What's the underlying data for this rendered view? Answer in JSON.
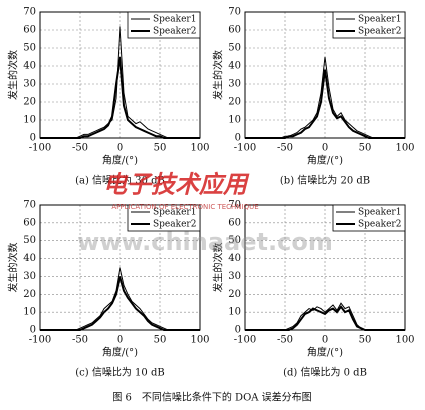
{
  "caption": "图 6　不同信噪比条件下的 DOA 误差分布图",
  "watermark": {
    "logo": "电子技术应用",
    "subtitle": "APPLICATION OF ELECTRONIC TECHNIQUE",
    "url": "www.chinaaet.com"
  },
  "chart_data": [
    {
      "type": "line",
      "title": "(a) 信噪比为 30 dB",
      "x_label": "角度/(°)",
      "y_label": "发生的次数",
      "x": [
        -100,
        -95,
        -90,
        -85,
        -80,
        -75,
        -70,
        -65,
        -60,
        -55,
        -50,
        -45,
        -40,
        -35,
        -30,
        -25,
        -20,
        -15,
        -10,
        -5,
        0,
        5,
        10,
        15,
        20,
        25,
        30,
        35,
        40,
        45,
        50,
        55,
        60,
        65,
        70,
        75,
        80,
        85,
        90,
        95,
        100
      ],
      "series": [
        {
          "name": "Speaker1",
          "color": "#000000",
          "width": 1,
          "values": [
            0,
            0,
            0,
            0,
            0,
            0,
            0,
            0,
            0,
            0,
            1,
            2,
            2,
            3,
            4,
            5,
            6,
            8,
            10,
            22,
            62,
            25,
            12,
            10,
            8,
            9,
            7,
            5,
            4,
            3,
            2,
            1,
            0,
            0,
            0,
            0,
            0,
            0,
            0,
            0,
            0
          ]
        },
        {
          "name": "Speaker2",
          "color": "#000000",
          "width": 2,
          "values": [
            0,
            0,
            0,
            0,
            0,
            0,
            0,
            0,
            0,
            0,
            0,
            1,
            1,
            2,
            3,
            4,
            5,
            7,
            12,
            30,
            45,
            18,
            10,
            8,
            6,
            5,
            4,
            3,
            2,
            1,
            1,
            0,
            0,
            0,
            0,
            0,
            0,
            0,
            0,
            0,
            0
          ]
        }
      ],
      "xlim": [
        -100,
        100
      ],
      "xticks": [
        -100,
        -50,
        0,
        50,
        100
      ],
      "ylim": [
        0,
        70
      ],
      "yticks": [
        0,
        10,
        20,
        30,
        40,
        50,
        60,
        70
      ],
      "grid": true,
      "legend": "upper right"
    },
    {
      "type": "line",
      "title": "(b) 信噪比为 20 dB",
      "x_label": "角度/(°)",
      "y_label": "发生的次数",
      "x": [
        -100,
        -95,
        -90,
        -85,
        -80,
        -75,
        -70,
        -65,
        -60,
        -55,
        -50,
        -45,
        -40,
        -35,
        -30,
        -25,
        -20,
        -15,
        -10,
        -5,
        0,
        5,
        10,
        15,
        20,
        25,
        30,
        35,
        40,
        45,
        50,
        55,
        60,
        65,
        70,
        75,
        80,
        85,
        90,
        95,
        100
      ],
      "series": [
        {
          "name": "Speaker1",
          "color": "#000000",
          "width": 1,
          "values": [
            0,
            0,
            0,
            0,
            0,
            0,
            0,
            0,
            0,
            0,
            1,
            1,
            2,
            3,
            5,
            6,
            8,
            10,
            14,
            25,
            45,
            28,
            16,
            12,
            14,
            10,
            8,
            6,
            4,
            3,
            2,
            1,
            0,
            0,
            0,
            0,
            0,
            0,
            0,
            0,
            0
          ]
        },
        {
          "name": "Speaker2",
          "color": "#000000",
          "width": 2,
          "values": [
            0,
            0,
            0,
            0,
            0,
            0,
            0,
            0,
            0,
            0,
            0,
            1,
            1,
            2,
            3,
            5,
            6,
            9,
            12,
            20,
            38,
            22,
            14,
            11,
            12,
            9,
            6,
            4,
            3,
            2,
            1,
            0,
            0,
            0,
            0,
            0,
            0,
            0,
            0,
            0,
            0
          ]
        }
      ],
      "xlim": [
        -100,
        100
      ],
      "xticks": [
        -100,
        -50,
        0,
        50,
        100
      ],
      "ylim": [
        0,
        70
      ],
      "yticks": [
        0,
        10,
        20,
        30,
        40,
        50,
        60,
        70
      ],
      "grid": true,
      "legend": "upper right"
    },
    {
      "type": "line",
      "title": "(c) 信噪比为 10 dB",
      "x_label": "角度/(°)",
      "y_label": "发生的次数",
      "x": [
        -100,
        -95,
        -90,
        -85,
        -80,
        -75,
        -70,
        -65,
        -60,
        -55,
        -50,
        -45,
        -40,
        -35,
        -30,
        -25,
        -20,
        -15,
        -10,
        -5,
        0,
        5,
        10,
        15,
        20,
        25,
        30,
        35,
        40,
        45,
        50,
        55,
        60,
        65,
        70,
        75,
        80,
        85,
        90,
        95,
        100
      ],
      "series": [
        {
          "name": "Speaker1",
          "color": "#000000",
          "width": 1,
          "values": [
            0,
            0,
            0,
            0,
            0,
            0,
            0,
            0,
            0,
            0,
            1,
            2,
            3,
            4,
            6,
            8,
            12,
            14,
            16,
            22,
            35,
            25,
            20,
            16,
            14,
            12,
            9,
            6,
            4,
            3,
            2,
            1,
            0,
            0,
            0,
            0,
            0,
            0,
            0,
            0,
            0
          ]
        },
        {
          "name": "Speaker2",
          "color": "#000000",
          "width": 2,
          "values": [
            0,
            0,
            0,
            0,
            0,
            0,
            0,
            0,
            0,
            0,
            0,
            1,
            2,
            3,
            5,
            7,
            10,
            12,
            15,
            20,
            30,
            22,
            18,
            15,
            12,
            10,
            8,
            5,
            3,
            2,
            1,
            0,
            0,
            0,
            0,
            0,
            0,
            0,
            0,
            0,
            0
          ]
        }
      ],
      "xlim": [
        -100,
        100
      ],
      "xticks": [
        -100,
        -50,
        0,
        50,
        100
      ],
      "ylim": [
        0,
        70
      ],
      "yticks": [
        0,
        10,
        20,
        30,
        40,
        50,
        60,
        70
      ],
      "grid": true,
      "legend": "upper right"
    },
    {
      "type": "line",
      "title": "(d) 信噪比为 0 dB",
      "x_label": "角度/(°)",
      "y_label": "发生的次数",
      "x": [
        -100,
        -95,
        -90,
        -85,
        -80,
        -75,
        -70,
        -65,
        -60,
        -55,
        -50,
        -45,
        -40,
        -35,
        -30,
        -25,
        -20,
        -15,
        -10,
        -5,
        0,
        5,
        10,
        15,
        20,
        25,
        30,
        35,
        40,
        45,
        50,
        55,
        60,
        65,
        70,
        75,
        80,
        85,
        90,
        95,
        100
      ],
      "series": [
        {
          "name": "Speaker1",
          "color": "#000000",
          "width": 1,
          "values": [
            0,
            0,
            0,
            0,
            0,
            0,
            0,
            0,
            0,
            0,
            0,
            1,
            2,
            4,
            8,
            10,
            12,
            11,
            13,
            12,
            10,
            12,
            14,
            11,
            15,
            12,
            13,
            8,
            3,
            1,
            0,
            0,
            0,
            0,
            0,
            0,
            0,
            0,
            0,
            0,
            0
          ]
        },
        {
          "name": "Speaker2",
          "color": "#000000",
          "width": 2,
          "values": [
            0,
            0,
            0,
            0,
            0,
            0,
            0,
            0,
            0,
            0,
            0,
            0,
            1,
            3,
            6,
            9,
            10,
            12,
            11,
            10,
            9,
            11,
            12,
            10,
            13,
            10,
            11,
            6,
            2,
            1,
            0,
            0,
            0,
            0,
            0,
            0,
            0,
            0,
            0,
            0,
            0
          ]
        }
      ],
      "xlim": [
        -100,
        100
      ],
      "xticks": [
        -100,
        -50,
        0,
        50,
        100
      ],
      "ylim": [
        0,
        70
      ],
      "yticks": [
        0,
        10,
        20,
        30,
        40,
        50,
        60,
        70
      ],
      "grid": true,
      "legend": "upper right"
    }
  ]
}
